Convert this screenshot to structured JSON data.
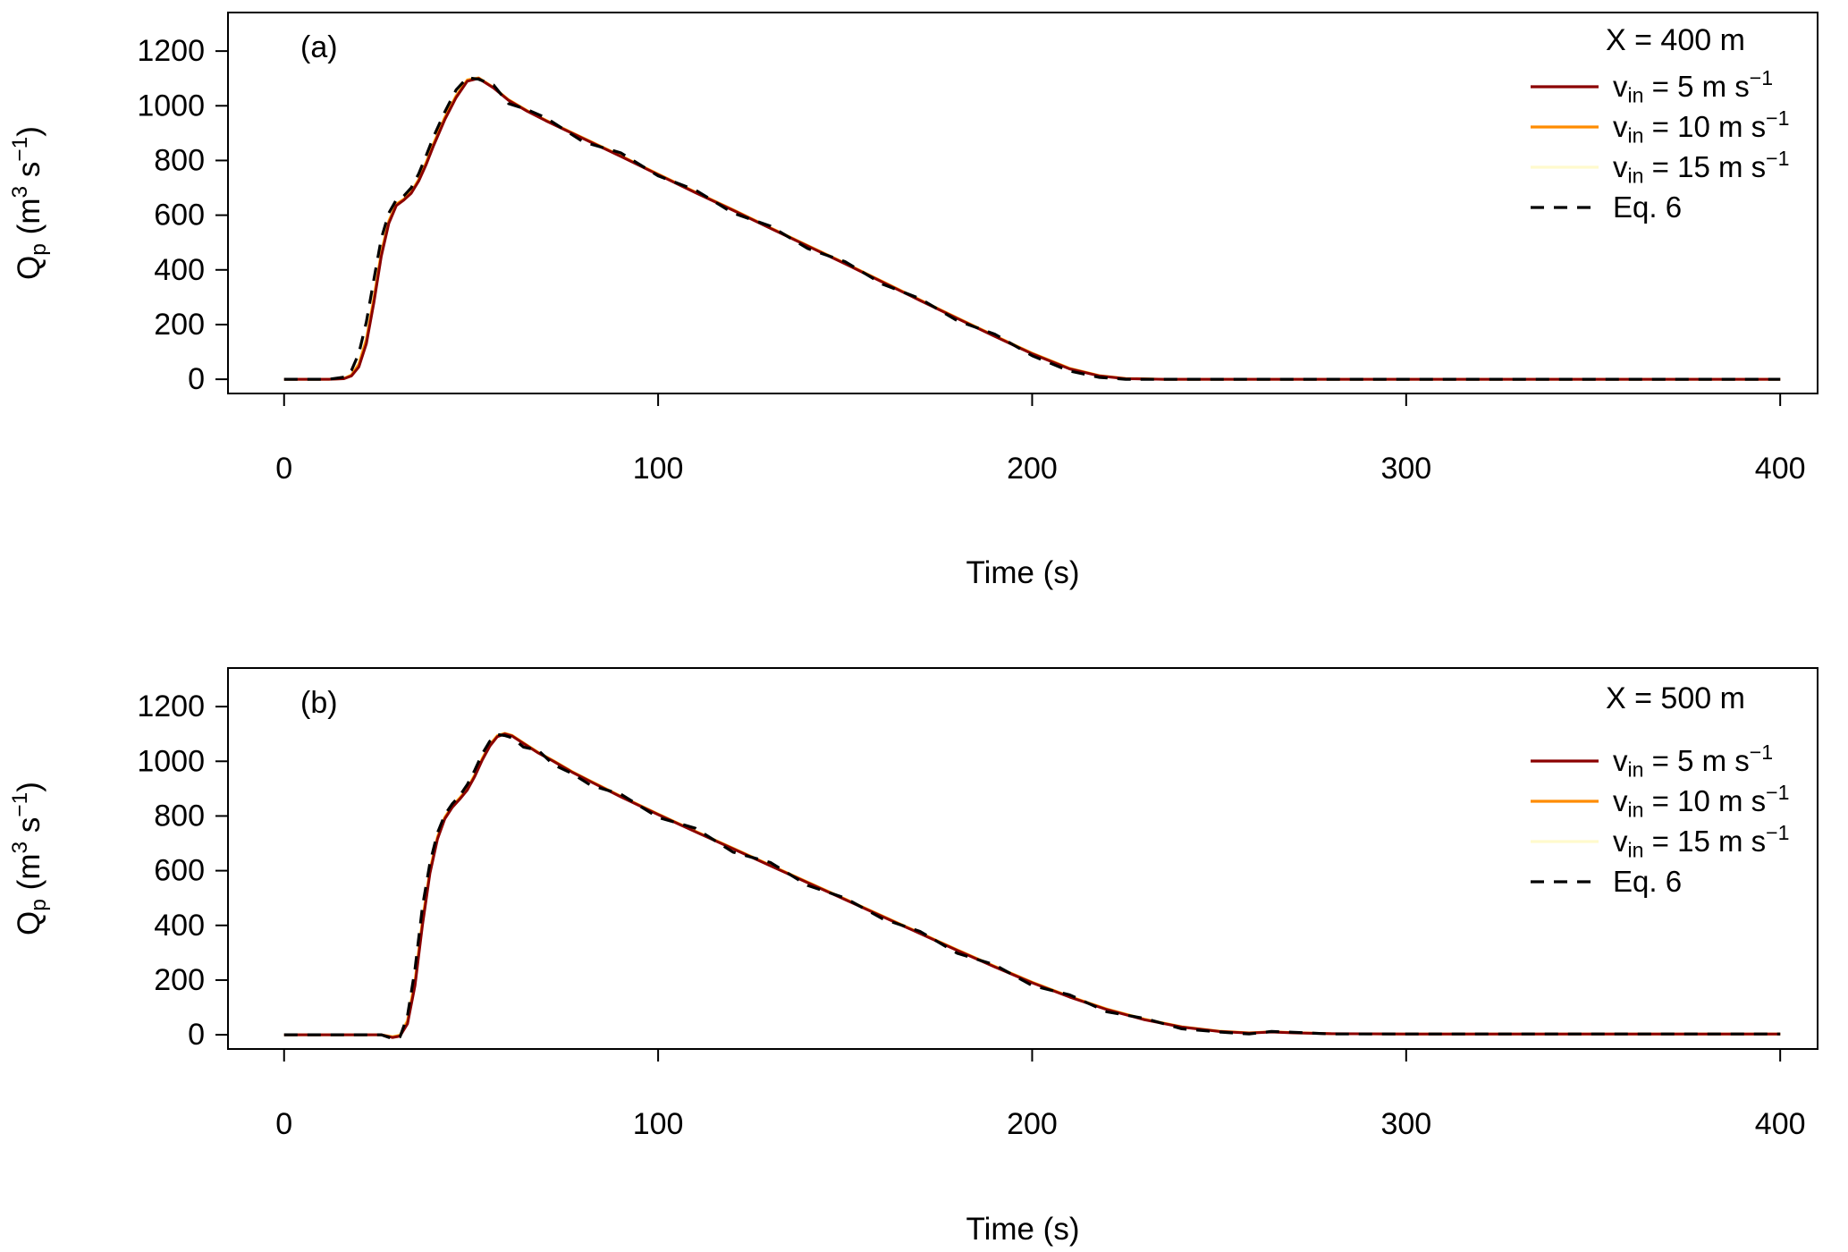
{
  "figure": {
    "background": "#ffffff",
    "text_color": "#000000"
  },
  "chart_data": [
    {
      "type": "line",
      "panel_label": "(a)",
      "legend_title": "X = 400 m",
      "xlabel": "Time (s)",
      "ylabel": "Q_p (m^3 s^-1)",
      "ylabel_parts": [
        {
          "t": "Q"
        },
        {
          "t": "p",
          "pos": "sub"
        },
        {
          "t": " (m"
        },
        {
          "t": "3",
          "pos": "sup"
        },
        {
          "t": " s"
        },
        {
          "t": "−1",
          "pos": "sup"
        },
        {
          "t": ")"
        }
      ],
      "xlim": [
        0,
        400
      ],
      "ylim": [
        0,
        1200
      ],
      "xticks": [
        0,
        100,
        200,
        300,
        400
      ],
      "yticks": [
        0,
        200,
        400,
        600,
        800,
        1000,
        1200
      ],
      "grid": false,
      "legend_position": "top-right",
      "x": [
        0,
        12,
        16,
        18,
        20,
        22,
        24,
        26,
        28,
        30,
        32,
        34,
        36,
        38,
        40,
        43,
        46,
        49,
        52,
        56,
        60,
        65,
        70,
        80,
        90,
        100,
        110,
        120,
        130,
        140,
        150,
        160,
        170,
        180,
        190,
        200,
        210,
        218,
        225,
        235,
        250,
        300,
        400
      ],
      "series": [
        {
          "name": "v_in = 5 m s^-1",
          "name_parts": [
            {
              "t": "v"
            },
            {
              "t": "in",
              "pos": "sub"
            },
            {
              "t": " = 5 m s"
            },
            {
              "t": "−1",
              "pos": "sup"
            }
          ],
          "color": "#8B0000",
          "style": "solid",
          "values": [
            0,
            0,
            2,
            12,
            45,
            130,
            280,
            450,
            570,
            635,
            655,
            680,
            725,
            785,
            855,
            950,
            1030,
            1090,
            1100,
            1065,
            1020,
            980,
            945,
            880,
            815,
            748,
            682,
            618,
            552,
            487,
            422,
            355,
            288,
            222,
            157,
            93,
            38,
            12,
            2,
            0,
            0,
            0,
            0
          ]
        },
        {
          "name": "v_in = 10 m s^-1",
          "name_parts": [
            {
              "t": "v"
            },
            {
              "t": "in",
              "pos": "sub"
            },
            {
              "t": " = 10 m s"
            },
            {
              "t": "−1",
              "pos": "sup"
            }
          ],
          "color": "#FF8C00",
          "style": "solid",
          "values": [
            0,
            0,
            3,
            15,
            55,
            145,
            295,
            462,
            578,
            640,
            658,
            684,
            730,
            792,
            862,
            957,
            1036,
            1094,
            1102,
            1067,
            1022,
            982,
            947,
            882,
            817,
            750,
            684,
            620,
            554,
            489,
            424,
            357,
            290,
            224,
            159,
            95,
            40,
            13,
            3,
            0,
            0,
            0,
            0
          ]
        },
        {
          "name": "v_in = 15 m s^-1",
          "name_parts": [
            {
              "t": "v"
            },
            {
              "t": "in",
              "pos": "sub"
            },
            {
              "t": " = 15 m s"
            },
            {
              "t": "−1",
              "pos": "sup"
            }
          ],
          "color": "#FFFACD",
          "style": "solid",
          "values": [
            0,
            0,
            4,
            18,
            62,
            155,
            305,
            470,
            583,
            643,
            660,
            688,
            735,
            798,
            868,
            962,
            1041,
            1097,
            1103,
            1068,
            1023,
            983,
            948,
            883,
            818,
            751,
            685,
            621,
            555,
            490,
            425,
            358,
            291,
            225,
            160,
            96,
            41,
            14,
            3,
            0,
            0,
            0,
            0
          ]
        },
        {
          "name": "Eq. 6",
          "name_parts": [
            {
              "t": "Eq. 6"
            }
          ],
          "color": "#000000",
          "style": "dashed",
          "values": [
            0,
            0,
            8,
            32,
            95,
            210,
            365,
            515,
            608,
            656,
            670,
            700,
            752,
            818,
            888,
            978,
            1058,
            1103,
            1097,
            1076,
            1008,
            986,
            956,
            868,
            828,
            744,
            692,
            608,
            560,
            478,
            430,
            348,
            295,
            214,
            165,
            86,
            30,
            7,
            0,
            0,
            0,
            0,
            0
          ]
        }
      ]
    },
    {
      "type": "line",
      "panel_label": "(b)",
      "legend_title": "X = 500 m",
      "xlabel": "Time (s)",
      "ylabel": "Q_p (m^3 s^-1)",
      "ylabel_parts": [
        {
          "t": "Q"
        },
        {
          "t": "p",
          "pos": "sub"
        },
        {
          "t": " (m"
        },
        {
          "t": "3",
          "pos": "sup"
        },
        {
          "t": " s"
        },
        {
          "t": "−1",
          "pos": "sup"
        },
        {
          "t": ")"
        }
      ],
      "xlim": [
        0,
        400
      ],
      "ylim": [
        0,
        1200
      ],
      "xticks": [
        0,
        100,
        200,
        300,
        400
      ],
      "yticks": [
        0,
        200,
        400,
        600,
        800,
        1000,
        1200
      ],
      "grid": false,
      "legend_position": "top-right",
      "x": [
        0,
        20,
        26,
        29,
        31,
        33,
        35,
        37,
        39,
        41,
        43,
        45,
        47,
        49,
        51,
        53,
        55,
        57,
        59,
        61,
        64,
        68,
        72,
        77,
        82,
        90,
        100,
        110,
        120,
        130,
        140,
        150,
        160,
        170,
        180,
        190,
        200,
        210,
        220,
        230,
        240,
        250,
        258,
        264,
        270,
        280,
        300,
        350,
        400
      ],
      "series": [
        {
          "name": "v_in = 5 m s^-1",
          "name_parts": [
            {
              "t": "v"
            },
            {
              "t": "in",
              "pos": "sub"
            },
            {
              "t": " = 5 m s"
            },
            {
              "t": "−1",
              "pos": "sup"
            }
          ],
          "color": "#8B0000",
          "style": "solid",
          "values": [
            0,
            0,
            0,
            -10,
            -5,
            40,
            180,
            400,
            590,
            715,
            790,
            832,
            862,
            895,
            945,
            1005,
            1055,
            1090,
            1100,
            1092,
            1065,
            1030,
            1000,
            960,
            925,
            870,
            805,
            742,
            680,
            618,
            556,
            494,
            432,
            370,
            308,
            248,
            190,
            138,
            92,
            55,
            28,
            12,
            6,
            10,
            7,
            4,
            3,
            3,
            3
          ]
        },
        {
          "name": "v_in = 10 m s^-1",
          "name_parts": [
            {
              "t": "v"
            },
            {
              "t": "in",
              "pos": "sub"
            },
            {
              "t": " = 10 m s"
            },
            {
              "t": "−1",
              "pos": "sup"
            }
          ],
          "color": "#FF8C00",
          "style": "solid",
          "values": [
            0,
            0,
            0,
            -8,
            -2,
            50,
            195,
            415,
            600,
            722,
            795,
            836,
            866,
            900,
            950,
            1010,
            1060,
            1093,
            1102,
            1094,
            1067,
            1032,
            1002,
            962,
            927,
            872,
            807,
            744,
            682,
            620,
            558,
            496,
            434,
            372,
            310,
            250,
            192,
            140,
            94,
            57,
            29,
            13,
            7,
            11,
            8,
            4,
            3,
            3,
            3
          ]
        },
        {
          "name": "v_in = 15 m s^-1",
          "name_parts": [
            {
              "t": "v"
            },
            {
              "t": "in",
              "pos": "sub"
            },
            {
              "t": " = 15 m s"
            },
            {
              "t": "−1",
              "pos": "sup"
            }
          ],
          "color": "#FFFACD",
          "style": "solid",
          "values": [
            0,
            0,
            0,
            -6,
            0,
            58,
            205,
            425,
            607,
            727,
            799,
            839,
            869,
            904,
            954,
            1013,
            1063,
            1095,
            1103,
            1095,
            1068,
            1033,
            1003,
            963,
            928,
            873,
            808,
            745,
            683,
            621,
            559,
            497,
            435,
            373,
            311,
            251,
            193,
            141,
            95,
            58,
            30,
            14,
            8,
            11,
            8,
            4,
            3,
            3,
            3
          ]
        },
        {
          "name": "Eq. 6",
          "name_parts": [
            {
              "t": "Eq. 6"
            }
          ],
          "color": "#000000",
          "style": "dashed",
          "values": [
            0,
            0,
            0,
            -14,
            -8,
            70,
            240,
            468,
            628,
            738,
            805,
            845,
            875,
            915,
            968,
            1028,
            1073,
            1098,
            1094,
            1086,
            1052,
            1040,
            988,
            955,
            912,
            880,
            795,
            755,
            668,
            630,
            546,
            500,
            424,
            378,
            298,
            256,
            180,
            146,
            84,
            60,
            22,
            10,
            3,
            12,
            9,
            3,
            3,
            3,
            3
          ]
        }
      ]
    }
  ]
}
